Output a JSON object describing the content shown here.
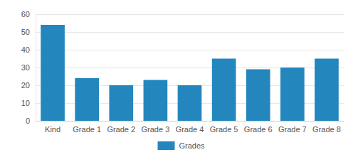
{
  "chart_data": {
    "type": "bar",
    "categories": [
      "Kind",
      "Grade 1",
      "Grade 2",
      "Grade 3",
      "Grade 4",
      "Grade 5",
      "Grade 6",
      "Grade 7",
      "Grade 8"
    ],
    "series": [
      {
        "name": "Grades",
        "color": "#2387be",
        "values": [
          54,
          24,
          20,
          23,
          20,
          35,
          29,
          30,
          35
        ]
      }
    ],
    "ylim": [
      0,
      60
    ],
    "yticks": [
      0,
      10,
      20,
      30,
      40,
      50,
      60
    ],
    "grid": true,
    "legend": "bottom"
  }
}
